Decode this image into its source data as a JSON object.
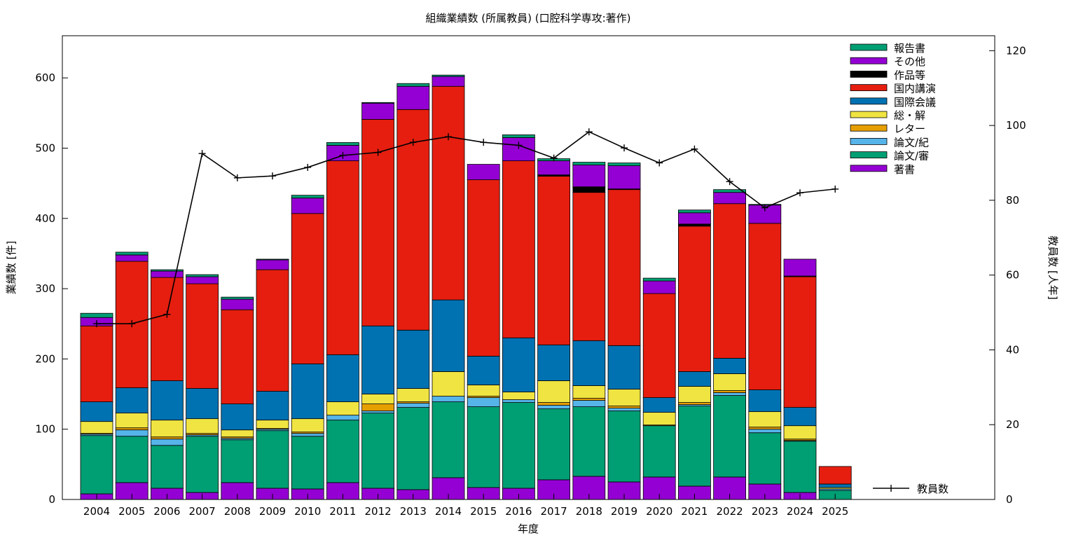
{
  "chart_data": {
    "type": "bar",
    "stacked": true,
    "title": "組織業績数 (所属教員) (口腔科学専攻:著作)",
    "xlabel": "年度",
    "ylabel": "業績数 [件]",
    "y2label": "教員数 [人年]",
    "ylim": [
      0,
      660
    ],
    "y2lim": [
      0,
      124
    ],
    "yticks": [
      0,
      100,
      200,
      300,
      400,
      500,
      600
    ],
    "y2ticks": [
      0,
      20,
      40,
      60,
      80,
      100,
      120
    ],
    "grid": false,
    "legend_position": "top-right",
    "categories": [
      "2004",
      "2005",
      "2006",
      "2007",
      "2008",
      "2009",
      "2010",
      "2011",
      "2012",
      "2013",
      "2014",
      "2015",
      "2016",
      "2017",
      "2018",
      "2019",
      "2020",
      "2021",
      "2022",
      "2023",
      "2024",
      "2025"
    ],
    "series": [
      {
        "name": "著書",
        "color": "#9400d3",
        "values": [
          8,
          24,
          16,
          10,
          24,
          16,
          15,
          24,
          16,
          14,
          31,
          17,
          16,
          28,
          33,
          25,
          32,
          19,
          32,
          22,
          10,
          0
        ]
      },
      {
        "name": "論文/審",
        "color": "#009e73",
        "values": [
          83,
          66,
          61,
          80,
          61,
          82,
          75,
          89,
          107,
          117,
          108,
          115,
          122,
          101,
          99,
          101,
          73,
          114,
          116,
          73,
          73,
          13
        ]
      },
      {
        "name": "論文/紀",
        "color": "#56b4e9",
        "values": [
          2,
          9,
          9,
          2,
          2,
          2,
          4,
          7,
          3,
          6,
          8,
          13,
          4,
          5,
          9,
          4,
          0,
          2,
          4,
          5,
          1,
          2
        ]
      },
      {
        "name": "レター",
        "color": "#e69f00",
        "values": [
          1,
          3,
          3,
          2,
          2,
          1,
          2,
          0,
          10,
          2,
          0,
          2,
          0,
          4,
          3,
          3,
          1,
          3,
          3,
          3,
          2,
          0
        ]
      },
      {
        "name": "総・解",
        "color": "#f0e442",
        "values": [
          17,
          21,
          24,
          21,
          10,
          12,
          19,
          19,
          14,
          19,
          35,
          16,
          11,
          31,
          18,
          24,
          18,
          23,
          24,
          22,
          19,
          2
        ]
      },
      {
        "name": "国際会議",
        "color": "#0072b2",
        "values": [
          28,
          36,
          56,
          43,
          37,
          41,
          78,
          67,
          97,
          83,
          102,
          41,
          77,
          51,
          64,
          62,
          21,
          21,
          22,
          31,
          26,
          5
        ]
      },
      {
        "name": "国内講演",
        "color": "#e51e10",
        "values": [
          108,
          180,
          147,
          149,
          134,
          173,
          214,
          276,
          294,
          314,
          304,
          251,
          252,
          240,
          211,
          222,
          148,
          207,
          220,
          237,
          186,
          25
        ]
      },
      {
        "name": "作品等",
        "color": "#000000",
        "values": [
          0,
          0,
          0,
          0,
          0,
          0,
          0,
          0,
          0,
          0,
          0,
          0,
          0,
          2,
          8,
          1,
          0,
          3,
          0,
          0,
          1,
          0
        ]
      },
      {
        "name": "その他",
        "color": "#9400d3",
        "values": [
          12,
          9,
          9,
          10,
          15,
          14,
          22,
          22,
          23,
          33,
          14,
          22,
          33,
          20,
          31,
          33,
          18,
          16,
          16,
          26,
          24,
          0
        ]
      },
      {
        "name": "報告書",
        "color": "#009e73",
        "values": [
          6,
          4,
          2,
          3,
          3,
          1,
          4,
          4,
          1,
          4,
          2,
          0,
          4,
          3,
          4,
          4,
          4,
          4,
          4,
          1,
          0,
          0
        ]
      }
    ],
    "line_series": {
      "name": "教員数",
      "axis": "y2",
      "color": "#000000",
      "values": [
        47,
        47,
        49.5,
        92.5,
        86,
        86.5,
        88.8,
        92,
        92.8,
        95.5,
        97,
        95.5,
        94.7,
        91.3,
        98.3,
        94,
        90,
        93.7,
        85,
        78,
        82,
        83
      ]
    }
  }
}
